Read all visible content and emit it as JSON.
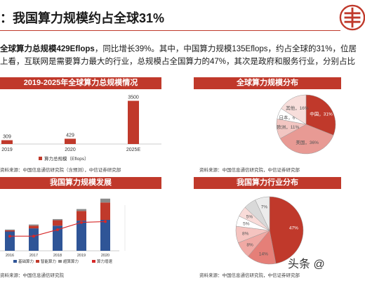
{
  "slide": {
    "title": "：我国算力规模约占全球31%",
    "summary_line1_bold": "全球算力总规模429Eflops",
    "summary_line1_rest": "，同比增长39%。其中，中国算力规模135Eflops，约占全球的31%，位居",
    "summary_line2": "上看，互联网是需要算力最大的行业，总规模占全国算力的47%，其次是政府和服务行业，分别占比",
    "watermark": "头条 @"
  },
  "colors": {
    "accent": "#c0392b",
    "bar": "#c0392b",
    "line": "#d62828",
    "blue": "#2f5597",
    "gray": "#8a8a8a"
  },
  "panels": {
    "p1": {
      "header": "2019-2025年全球算力总规模情况",
      "source": "资料来源：中国信息通信研究院（含预测），中信证券研究部"
    },
    "p2": {
      "header": "全球算力规模分布",
      "source": "资料来源：中国信息通信研究院，中信证券研究部"
    },
    "p3": {
      "header": "我国算力规模发展",
      "source": "资料来源：中国信息通信研究院"
    },
    "p4": {
      "header": "我国算力行业分布",
      "source": "资料来源：中国信息通信研究院，中信证券研究部"
    }
  },
  "chart_data": [
    {
      "type": "bar",
      "categories": [
        "2019",
        "2020",
        "2025E"
      ],
      "series": [
        {
          "name": "算力总规模（Eflops）",
          "values": [
            309,
            429,
            3500
          ]
        }
      ],
      "data_labels": [
        "309",
        "429",
        "3500"
      ],
      "ylim": [
        0,
        3700
      ]
    },
    {
      "type": "pie",
      "labels": [
        "中国",
        "美国",
        "欧洲",
        "日本",
        "其他"
      ],
      "values": [
        31,
        36,
        11,
        6,
        16
      ],
      "slice_labels": [
        "中国，31%",
        "美国，36%",
        "欧洲，11%",
        "日本，6%",
        "其他，16%"
      ],
      "colors": [
        "#c0392b",
        "#e89a94",
        "#f2c6c2",
        "#ffffff",
        "#f7dedb"
      ]
    },
    {
      "type": "bar",
      "categories": [
        "2016",
        "2017",
        "2018",
        "2019",
        "2020"
      ],
      "series": [
        {
          "name": "基础算力",
          "values": [
            50,
            58,
            65,
            78,
            80
          ]
        },
        {
          "name": "智能算力",
          "values": [
            3,
            7,
            14,
            25,
            45
          ]
        },
        {
          "name": "超算算力",
          "values": [
            2,
            3,
            3,
            5,
            10
          ]
        },
        {
          "name": "算力增速",
          "values": [
            18,
            18,
            26,
            35,
            36
          ]
        }
      ],
      "line_series": "算力增速",
      "ylim": [
        0,
        140
      ]
    },
    {
      "type": "pie",
      "labels": [
        "",
        "",
        "",
        "",
        "",
        "",
        "",
        ""
      ],
      "values": [
        47,
        14,
        8,
        8,
        5,
        5,
        6,
        7
      ],
      "slice_labels": [
        "47%",
        "14%",
        "8%",
        "8%",
        "5%",
        "5%",
        "",
        "7%"
      ],
      "colors": [
        "#c0392b",
        "#e57f78",
        "#f0a9a4",
        "#f5c4c0",
        "#ffffff",
        "#f9dcd9",
        "#d9d9d9",
        "#ececec"
      ]
    }
  ]
}
